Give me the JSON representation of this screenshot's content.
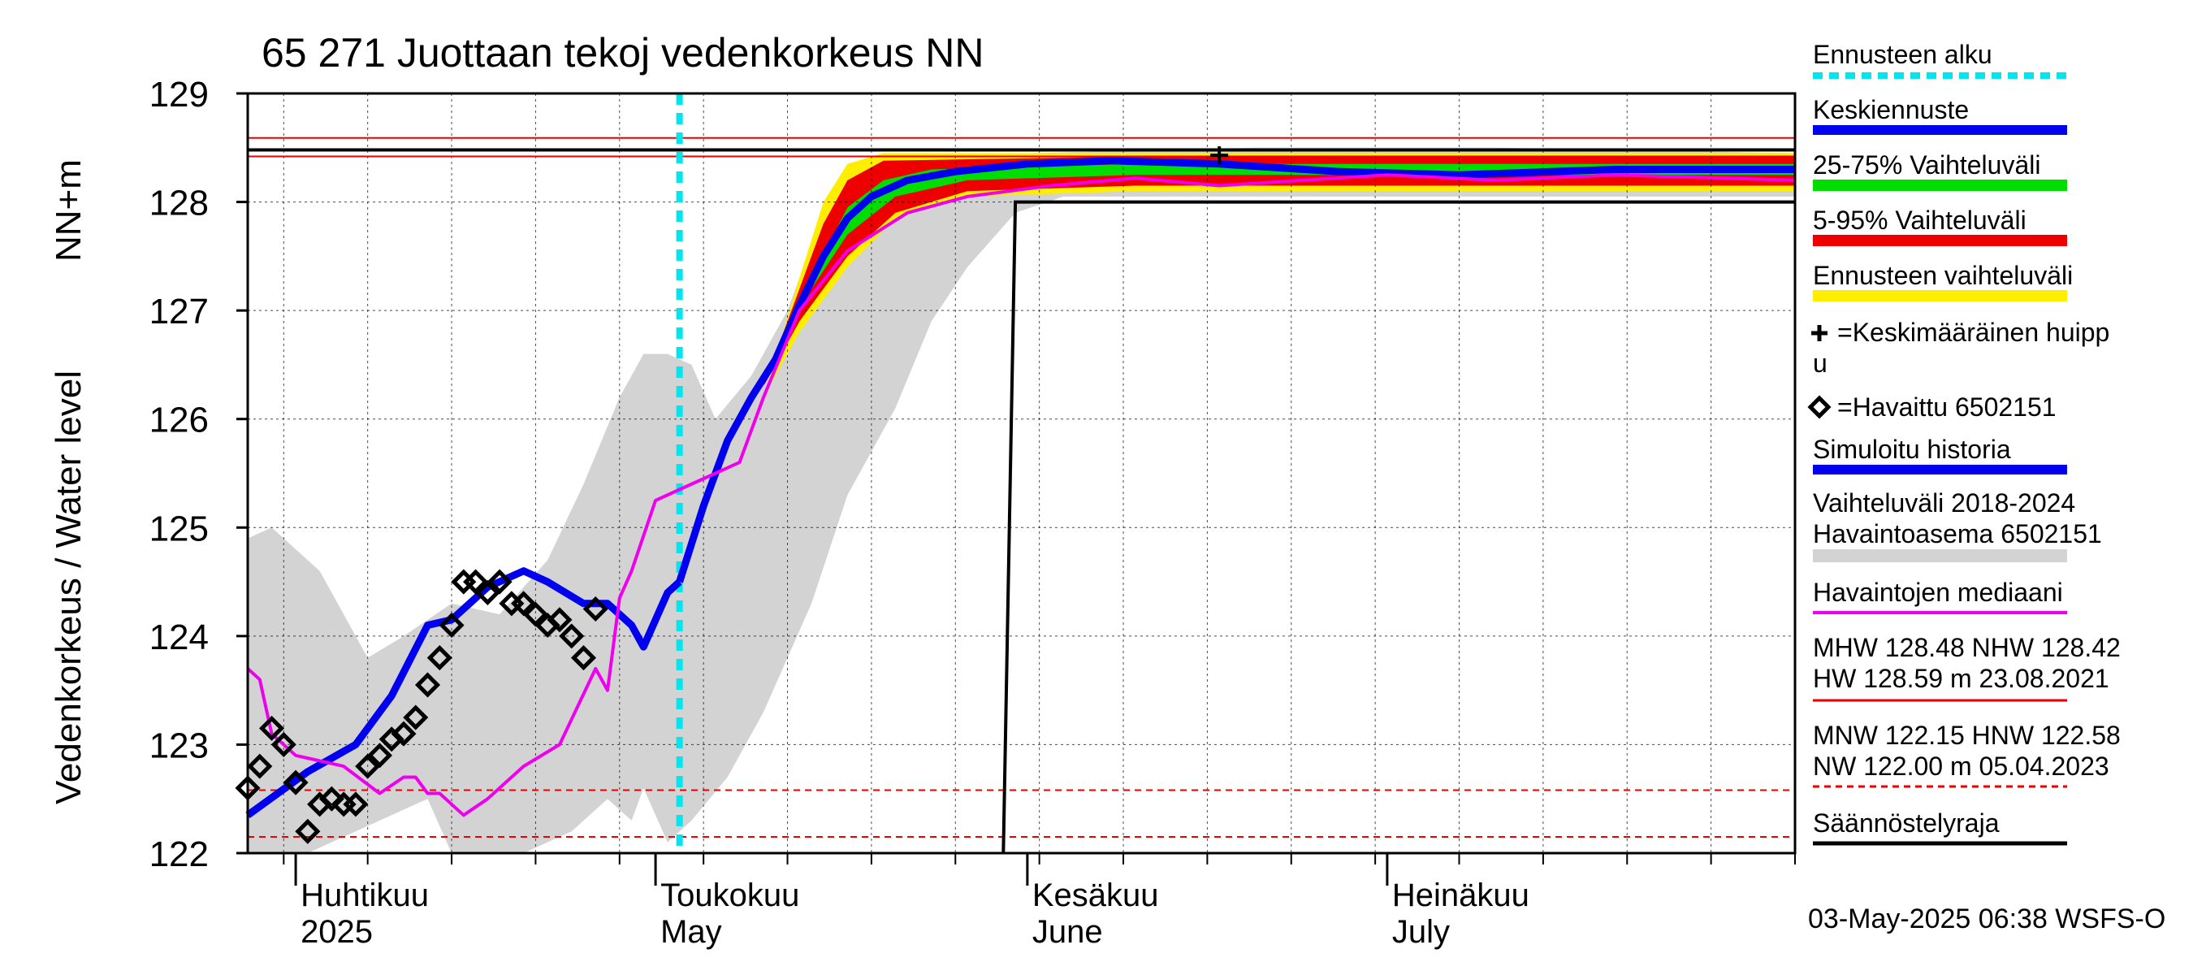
{
  "title": "65 271 Juottaan tekoj vedenkorkeus NN",
  "ylabel_fi": "Vedenkorkeus / Water level",
  "ylabel_unit": "NN+m",
  "footer": "03-May-2025 06:38 WSFS-O",
  "legend": {
    "forecast_start": "Ennusteen alku",
    "mean_forecast": "Keskiennuste",
    "range_25_75": "25-75% Vaihteluväli",
    "range_5_95": "5-95% Vaihteluväli",
    "forecast_range": "Ennusteen vaihteluväli",
    "mean_peak_1": "=Keskimääräinen huipp",
    "mean_peak_2": "u",
    "observed": "=Havaittu 6502151",
    "simulated": "Simuloitu historia",
    "hist_range_1": "Vaihteluväli 2018-2024",
    "hist_range_2": " Havaintoasema 6502151",
    "obs_median": "Havaintojen mediaani",
    "mhw_1": "MHW 128.48 NHW 128.42",
    "mhw_2": "HW 128.59 m 23.08.2021",
    "mnw_1": "MNW 122.15 HNW 122.58",
    "mnw_2": "NW 122.00 m 05.04.2023",
    "regulation": "Säännöstelyraja"
  },
  "colors": {
    "forecast_start": "#00e5ee",
    "mean_forecast": "#0000ee",
    "range_25_75": "#00dd00",
    "range_5_95": "#ee0000",
    "forecast_range": "#ffee00",
    "simulated": "#0000ee",
    "hist_range": "#d3d3d3",
    "obs_median": "#ee00ee",
    "hw_line": "#ee0000",
    "regulation": "#000000"
  },
  "chart_data": {
    "type": "line",
    "title": "65 271 Juottaan tekoj vedenkorkeus NN",
    "ylabel": "Vedenkorkeus / Water level NN+m",
    "x_start": "2025-03-28",
    "x_end": "2025-08-04",
    "ylim": [
      122,
      129
    ],
    "yticks": [
      122,
      123,
      124,
      125,
      126,
      127,
      128,
      129
    ],
    "month_labels": [
      {
        "date": "2025-04-01",
        "line1": "Huhtikuu",
        "line2": "2025"
      },
      {
        "date": "2025-05-01",
        "line1": "Toukokuu",
        "line2": "May"
      },
      {
        "date": "2025-06-01",
        "line1": "Kesäkuu",
        "line2": "June"
      },
      {
        "date": "2025-07-01",
        "line1": "Heinäkuu",
        "line2": "July"
      }
    ],
    "forecast_start": "2025-05-03",
    "reference_lines": {
      "HW": 128.59,
      "MHW": 128.48,
      "NHW": 128.42,
      "HNW": 122.58,
      "MNW": 122.15,
      "NW": 122.0
    },
    "regulation_limit": [
      {
        "date": "2025-05-30",
        "y": 122.0
      },
      {
        "date": "2025-05-31",
        "y": 128.0
      },
      {
        "date": "2025-08-04",
        "y": 128.0
      }
    ],
    "mean_peak": {
      "date": "2025-06-17",
      "y": 128.43
    },
    "series": [
      {
        "name": "Simuloitu historia",
        "points": [
          [
            "2025-03-28",
            122.35
          ],
          [
            "2025-04-02",
            122.75
          ],
          [
            "2025-04-06",
            123.0
          ],
          [
            "2025-04-09",
            123.45
          ],
          [
            "2025-04-12",
            124.1
          ],
          [
            "2025-04-14",
            124.15
          ],
          [
            "2025-04-17",
            124.45
          ],
          [
            "2025-04-20",
            124.6
          ],
          [
            "2025-04-22",
            124.5
          ],
          [
            "2025-04-25",
            124.3
          ],
          [
            "2025-04-27",
            124.3
          ],
          [
            "2025-04-29",
            124.1
          ],
          [
            "2025-04-30",
            123.9
          ],
          [
            "2025-05-02",
            124.4
          ],
          [
            "2025-05-03",
            124.5
          ]
        ]
      },
      {
        "name": "Keskiennuste",
        "points": [
          [
            "2025-05-03",
            124.5
          ],
          [
            "2025-05-05",
            125.2
          ],
          [
            "2025-05-07",
            125.8
          ],
          [
            "2025-05-09",
            126.2
          ],
          [
            "2025-05-11",
            126.55
          ],
          [
            "2025-05-13",
            127.05
          ],
          [
            "2025-05-15",
            127.5
          ],
          [
            "2025-05-17",
            127.85
          ],
          [
            "2025-05-19",
            128.05
          ],
          [
            "2025-05-22",
            128.2
          ],
          [
            "2025-05-26",
            128.28
          ],
          [
            "2025-06-01",
            128.35
          ],
          [
            "2025-06-08",
            128.38
          ],
          [
            "2025-06-17",
            128.35
          ],
          [
            "2025-06-27",
            128.28
          ],
          [
            "2025-07-07",
            128.25
          ],
          [
            "2025-07-20",
            128.3
          ],
          [
            "2025-08-04",
            128.3
          ]
        ]
      },
      {
        "name": "Havaintojen mediaani",
        "points": [
          [
            "2025-03-28",
            123.7
          ],
          [
            "2025-03-29",
            123.6
          ],
          [
            "2025-03-30",
            123.1
          ],
          [
            "2025-04-01",
            122.9
          ],
          [
            "2025-04-05",
            122.8
          ],
          [
            "2025-04-08",
            122.55
          ],
          [
            "2025-04-10",
            122.7
          ],
          [
            "2025-04-11",
            122.7
          ],
          [
            "2025-04-12",
            122.55
          ],
          [
            "2025-04-13",
            122.55
          ],
          [
            "2025-04-15",
            122.35
          ],
          [
            "2025-04-17",
            122.5
          ],
          [
            "2025-04-20",
            122.8
          ],
          [
            "2025-04-23",
            123.0
          ],
          [
            "2025-04-26",
            123.7
          ],
          [
            "2025-04-27",
            123.5
          ],
          [
            "2025-04-28",
            124.35
          ],
          [
            "2025-04-29",
            124.6
          ],
          [
            "2025-05-01",
            125.25
          ],
          [
            "2025-05-03",
            125.35
          ],
          [
            "2025-05-06",
            125.5
          ],
          [
            "2025-05-08",
            125.6
          ],
          [
            "2025-05-10",
            126.2
          ],
          [
            "2025-05-13",
            127.0
          ],
          [
            "2025-05-17",
            127.55
          ],
          [
            "2025-05-22",
            127.9
          ],
          [
            "2025-05-27",
            128.05
          ],
          [
            "2025-06-03",
            128.15
          ],
          [
            "2025-06-10",
            128.22
          ],
          [
            "2025-06-17",
            128.15
          ],
          [
            "2025-06-24",
            128.2
          ],
          [
            "2025-07-01",
            128.25
          ],
          [
            "2025-07-10",
            128.2
          ],
          [
            "2025-07-20",
            128.25
          ],
          [
            "2025-08-04",
            128.2
          ]
        ]
      },
      {
        "name": "Havaittu 6502151",
        "points": [
          [
            "2025-03-28",
            122.6
          ],
          [
            "2025-03-29",
            122.8
          ],
          [
            "2025-03-30",
            123.15
          ],
          [
            "2025-03-31",
            123.0
          ],
          [
            "2025-04-01",
            122.65
          ],
          [
            "2025-04-02",
            122.2
          ],
          [
            "2025-04-03",
            122.45
          ],
          [
            "2025-04-04",
            122.5
          ],
          [
            "2025-04-05",
            122.45
          ],
          [
            "2025-04-06",
            122.45
          ],
          [
            "2025-04-07",
            122.8
          ],
          [
            "2025-04-08",
            122.9
          ],
          [
            "2025-04-09",
            123.05
          ],
          [
            "2025-04-10",
            123.1
          ],
          [
            "2025-04-11",
            123.25
          ],
          [
            "2025-04-12",
            123.55
          ],
          [
            "2025-04-13",
            123.8
          ],
          [
            "2025-04-14",
            124.1
          ],
          [
            "2025-04-15",
            124.5
          ],
          [
            "2025-04-16",
            124.5
          ],
          [
            "2025-04-17",
            124.4
          ],
          [
            "2025-04-18",
            124.5
          ],
          [
            "2025-04-19",
            124.3
          ],
          [
            "2025-04-20",
            124.3
          ],
          [
            "2025-04-21",
            124.2
          ],
          [
            "2025-04-22",
            124.1
          ],
          [
            "2025-04-23",
            124.15
          ],
          [
            "2025-04-24",
            124.0
          ],
          [
            "2025-04-25",
            123.8
          ],
          [
            "2025-04-26",
            124.25
          ]
        ]
      }
    ],
    "bands": [
      {
        "name": "Vaihteluväli 2018-2024 Havaintoasema 6502151",
        "lower": [
          [
            "2025-03-28",
            122.0
          ],
          [
            "2025-04-02",
            122.0
          ],
          [
            "2025-04-08",
            122.3
          ],
          [
            "2025-04-12",
            122.5
          ],
          [
            "2025-04-14",
            122.0
          ],
          [
            "2025-04-20",
            122.0
          ],
          [
            "2025-04-24",
            122.2
          ],
          [
            "2025-04-27",
            122.5
          ],
          [
            "2025-04-29",
            122.3
          ],
          [
            "2025-04-30",
            122.6
          ],
          [
            "2025-05-02",
            122.1
          ],
          [
            "2025-05-04",
            122.3
          ],
          [
            "2025-05-07",
            122.7
          ],
          [
            "2025-05-10",
            123.3
          ],
          [
            "2025-05-14",
            124.3
          ],
          [
            "2025-05-17",
            125.3
          ],
          [
            "2025-05-21",
            126.1
          ],
          [
            "2025-05-24",
            126.9
          ],
          [
            "2025-05-27",
            127.4
          ],
          [
            "2025-05-31",
            127.9
          ],
          [
            "2025-06-04",
            128.05
          ],
          [
            "2025-06-20",
            128.05
          ],
          [
            "2025-07-10",
            128.05
          ],
          [
            "2025-08-04",
            128.05
          ]
        ],
        "upper": [
          [
            "2025-03-28",
            124.9
          ],
          [
            "2025-03-30",
            125.0
          ],
          [
            "2025-04-03",
            124.6
          ],
          [
            "2025-04-07",
            123.8
          ],
          [
            "2025-04-10",
            124.0
          ],
          [
            "2025-04-14",
            124.3
          ],
          [
            "2025-04-18",
            124.2
          ],
          [
            "2025-04-22",
            124.7
          ],
          [
            "2025-04-25",
            125.4
          ],
          [
            "2025-04-28",
            126.2
          ],
          [
            "2025-04-30",
            126.6
          ],
          [
            "2025-05-02",
            126.6
          ],
          [
            "2025-05-04",
            126.5
          ],
          [
            "2025-05-06",
            126.0
          ],
          [
            "2025-05-09",
            126.4
          ],
          [
            "2025-05-12",
            127.0
          ],
          [
            "2025-05-15",
            127.9
          ],
          [
            "2025-05-17",
            128.35
          ],
          [
            "2025-05-19",
            128.4
          ],
          [
            "2025-06-01",
            128.45
          ],
          [
            "2025-06-20",
            128.5
          ],
          [
            "2025-07-10",
            128.5
          ],
          [
            "2025-08-04",
            128.45
          ]
        ]
      },
      {
        "name": "Ennusteen vaihteluväli",
        "lower": [
          [
            "2025-05-10",
            126.2
          ],
          [
            "2025-05-13",
            126.8
          ],
          [
            "2025-05-17",
            127.4
          ],
          [
            "2025-05-21",
            127.85
          ],
          [
            "2025-05-27",
            128.05
          ],
          [
            "2025-06-10",
            128.1
          ],
          [
            "2025-08-04",
            128.1
          ]
        ],
        "upper": [
          [
            "2025-05-10",
            126.2
          ],
          [
            "2025-05-13",
            127.3
          ],
          [
            "2025-05-15",
            128.0
          ],
          [
            "2025-05-17",
            128.35
          ],
          [
            "2025-05-20",
            128.45
          ],
          [
            "2025-06-10",
            128.45
          ],
          [
            "2025-08-04",
            128.45
          ]
        ]
      },
      {
        "name": "5-95% Vaihteluväli",
        "lower": [
          [
            "2025-05-10",
            126.3
          ],
          [
            "2025-05-13",
            126.9
          ],
          [
            "2025-05-17",
            127.5
          ],
          [
            "2025-05-21",
            127.9
          ],
          [
            "2025-05-27",
            128.1
          ],
          [
            "2025-06-10",
            128.15
          ],
          [
            "2025-08-04",
            128.15
          ]
        ],
        "upper": [
          [
            "2025-05-10",
            126.3
          ],
          [
            "2025-05-13",
            127.2
          ],
          [
            "2025-05-15",
            127.8
          ],
          [
            "2025-05-17",
            128.2
          ],
          [
            "2025-05-20",
            128.38
          ],
          [
            "2025-06-10",
            128.42
          ],
          [
            "2025-08-04",
            128.42
          ]
        ]
      },
      {
        "name": "25-75% Vaihteluväli",
        "lower": [
          [
            "2025-05-11",
            126.5
          ],
          [
            "2025-05-14",
            127.2
          ],
          [
            "2025-05-17",
            127.7
          ],
          [
            "2025-05-21",
            128.05
          ],
          [
            "2025-05-27",
            128.2
          ],
          [
            "2025-06-10",
            128.25
          ],
          [
            "2025-08-04",
            128.25
          ]
        ],
        "upper": [
          [
            "2025-05-11",
            126.5
          ],
          [
            "2025-05-14",
            127.3
          ],
          [
            "2025-05-17",
            127.95
          ],
          [
            "2025-05-20",
            128.2
          ],
          [
            "2025-05-24",
            128.3
          ],
          [
            "2025-06-10",
            128.35
          ],
          [
            "2025-08-04",
            128.35
          ]
        ]
      }
    ]
  }
}
